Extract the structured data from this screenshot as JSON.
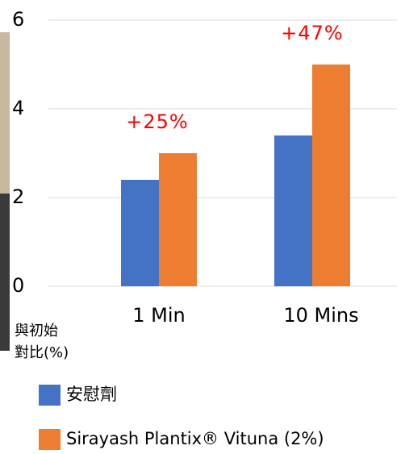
{
  "chart_data": {
    "type": "bar",
    "categories": [
      "1 Min",
      "10 Mins"
    ],
    "series": [
      {
        "name": "安慰劑",
        "color": "#4472c4",
        "values": [
          2.4,
          3.4
        ]
      },
      {
        "name": "Sirayash Plantix® Vituna (2%)",
        "color": "#ed7d31",
        "values": [
          3.0,
          5.0
        ]
      }
    ],
    "annotations": [
      "+25%",
      "+47%"
    ],
    "annotation_color": "#ff0000",
    "ylabel": [
      "與初始",
      "對比(%)"
    ],
    "ylim": [
      0,
      6
    ],
    "yticks": [
      0,
      2,
      4,
      6
    ],
    "grid": true
  }
}
